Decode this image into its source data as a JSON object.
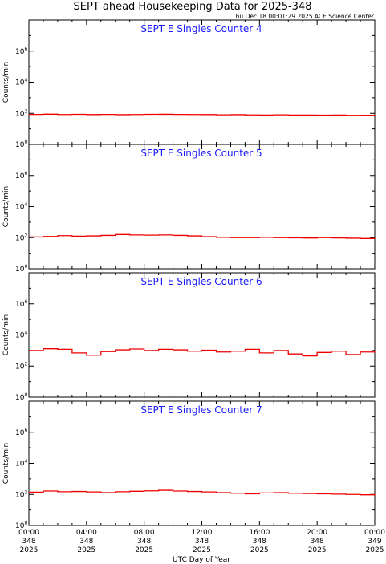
{
  "header": {
    "title": "SEPT ahead Housekeeping Data for 2025-348",
    "timestamp": "Thu Dec 18 00:01:29 2025 ACE Science Center"
  },
  "chart_data": {
    "type": "line",
    "line_style": "step",
    "line_color": "#ee0000",
    "title_color": "#1a1aff",
    "xlabel": "UTC Day of Year",
    "ylabel": "Counts/min",
    "y_scale": "log",
    "ylim": [
      1,
      100000000
    ],
    "y_ticks": [
      {
        "base": "10",
        "exp": "0",
        "value": 1
      },
      {
        "base": "10",
        "exp": "2",
        "value": 100
      },
      {
        "base": "10",
        "exp": "4",
        "value": 10000
      },
      {
        "base": "10",
        "exp": "6",
        "value": 1000000
      }
    ],
    "x_range_hours": [
      0,
      24
    ],
    "x_ticks": [
      {
        "hours": 0,
        "time": "00:00",
        "day": "348",
        "year": "2025"
      },
      {
        "hours": 4,
        "time": "04:00",
        "day": "348",
        "year": "2025"
      },
      {
        "hours": 8,
        "time": "08:00",
        "day": "348",
        "year": "2025"
      },
      {
        "hours": 12,
        "time": "12:00",
        "day": "348",
        "year": "2025"
      },
      {
        "hours": 16,
        "time": "16:00",
        "day": "348",
        "year": "2025"
      },
      {
        "hours": 20,
        "time": "20:00",
        "day": "348",
        "year": "2025"
      },
      {
        "hours": 24,
        "time": "00:00",
        "day": "349",
        "year": "2025"
      }
    ],
    "panels": [
      {
        "title": "SEPT E Singles Counter 4",
        "series": [
          {
            "hours": [
              0,
              1,
              2,
              3,
              4,
              5,
              6,
              7,
              8,
              9,
              10,
              11,
              12,
              13,
              14,
              15,
              16,
              17,
              18,
              19,
              20,
              21,
              22,
              23,
              24
            ],
            "values": [
              85,
              88,
              84,
              86,
              83,
              85,
              82,
              84,
              86,
              87,
              85,
              84,
              83,
              80,
              82,
              79,
              78,
              80,
              77,
              78,
              76,
              77,
              74,
              75,
              80
            ]
          }
        ]
      },
      {
        "title": "SEPT E Singles Counter 5",
        "series": [
          {
            "hours": [
              0,
              1,
              2,
              3,
              4,
              5,
              6,
              7,
              8,
              9,
              10,
              11,
              12,
              13,
              14,
              15,
              16,
              17,
              18,
              19,
              20,
              21,
              22,
              23,
              24
            ],
            "values": [
              110,
              120,
              135,
              125,
              130,
              140,
              160,
              150,
              145,
              150,
              140,
              130,
              115,
              105,
              100,
              100,
              105,
              100,
              98,
              95,
              100,
              96,
              92,
              88,
              90
            ]
          }
        ]
      },
      {
        "title": "SEPT E Singles Counter 6",
        "series": [
          {
            "hours": [
              0,
              1,
              2,
              3,
              4,
              5,
              6,
              7,
              8,
              9,
              10,
              11,
              12,
              13,
              14,
              15,
              16,
              17,
              18,
              19,
              20,
              21,
              22,
              23,
              24
            ],
            "values": [
              1000,
              1300,
              1200,
              700,
              500,
              850,
              1100,
              1250,
              1000,
              1200,
              1100,
              900,
              1050,
              800,
              900,
              1200,
              700,
              1000,
              600,
              450,
              750,
              900,
              550,
              800,
              950
            ]
          }
        ]
      },
      {
        "title": "SEPT E Singles Counter 7",
        "series": [
          {
            "hours": [
              0,
              1,
              2,
              3,
              4,
              5,
              6,
              7,
              8,
              9,
              10,
              11,
              12,
              13,
              14,
              15,
              16,
              17,
              18,
              19,
              20,
              21,
              22,
              23,
              24
            ],
            "values": [
              140,
              165,
              150,
              155,
              145,
              130,
              150,
              160,
              170,
              185,
              165,
              155,
              145,
              130,
              120,
              110,
              125,
              130,
              120,
              115,
              110,
              105,
              100,
              95,
              110
            ]
          }
        ]
      }
    ]
  }
}
